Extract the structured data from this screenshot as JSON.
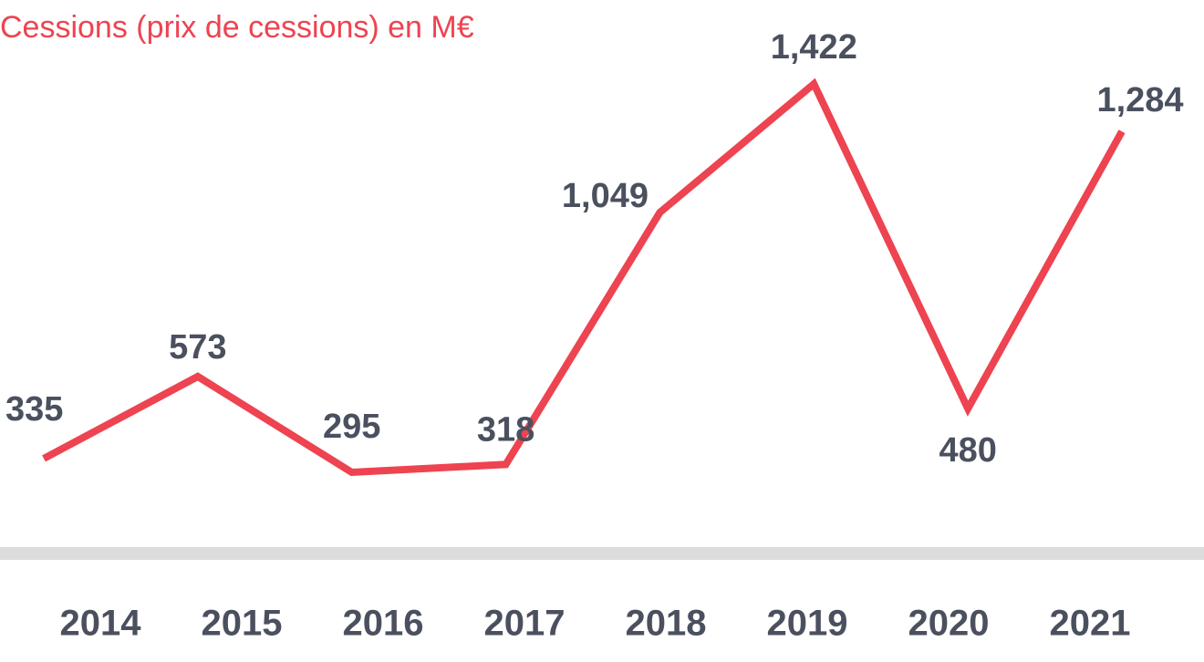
{
  "chart_data": {
    "type": "line",
    "title": "Cessions (prix de cessions) en M€",
    "categories": [
      "2014",
      "2015",
      "2016",
      "2017",
      "2018",
      "2019",
      "2020",
      "2021"
    ],
    "series": [
      {
        "name": null,
        "color": "#ee4350",
        "values": [
          335,
          573,
          295,
          318,
          1049,
          1422,
          480,
          1284
        ],
        "value_labels": [
          "335",
          "573",
          "295",
          "318",
          "1,049",
          "1,422",
          "480",
          "1,284"
        ]
      }
    ]
  }
}
